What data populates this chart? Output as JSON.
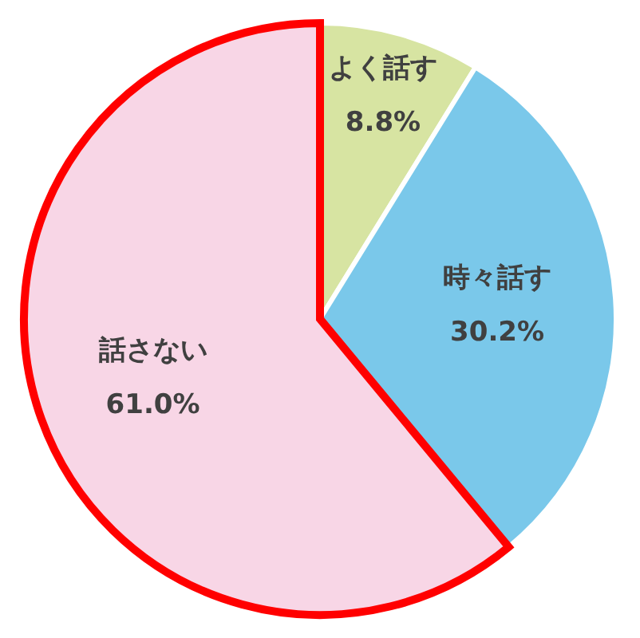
{
  "chart_data": {
    "type": "pie",
    "categories": [
      "よく話す",
      "時々話す",
      "話さない"
    ],
    "values": [
      8.8,
      30.2,
      61.0
    ],
    "value_labels": [
      "8.8%",
      "30.2%",
      "61.0%"
    ],
    "colors": [
      "#d7e4a2",
      "#7ac8ea",
      "#f8d6e6"
    ]
  }
}
